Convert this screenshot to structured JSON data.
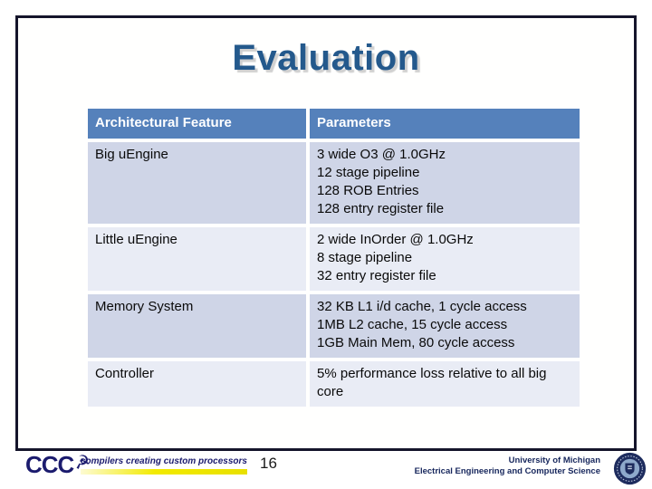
{
  "slide": {
    "title": "Evaluation"
  },
  "table": {
    "headers": [
      "Architectural Feature",
      "Parameters"
    ],
    "rows": [
      {
        "feature": "Big uEngine",
        "parameters": [
          "3 wide O3 @ 1.0GHz",
          "12 stage pipeline",
          "128 ROB Entries",
          "128 entry register file"
        ]
      },
      {
        "feature": "Little uEngine",
        "parameters": [
          "2 wide InOrder @ 1.0GHz",
          "8 stage pipeline",
          "32 entry register file"
        ]
      },
      {
        "feature": "Memory System",
        "parameters": [
          "32 KB L1 i/d cache, 1 cycle access",
          "1MB L2 cache, 15 cycle access",
          "1GB Main Mem, 80 cycle access"
        ]
      },
      {
        "feature": "Controller",
        "parameters": [
          "5% performance loss relative to all big core"
        ]
      }
    ]
  },
  "footer": {
    "logo_text": "CCC",
    "logo_glyph": "☭",
    "logo_tagline": "compilers creating custom processors",
    "page_number": "16",
    "affiliation_line1": "University of Michigan",
    "affiliation_line2": "Electrical Engineering and Computer Science"
  },
  "colors": {
    "title": "#24598c",
    "border": "#15152b",
    "header_bg": "#5581bb",
    "row_odd_bg": "#cfd5e7",
    "row_even_bg": "#e9ecf5",
    "logo_navy": "#1b1b6e",
    "accent_yellow": "#f2ea00",
    "affiliation_navy": "#16265c",
    "seal_navy": "#1e2c5e",
    "seal_light": "#8ea9cb"
  }
}
